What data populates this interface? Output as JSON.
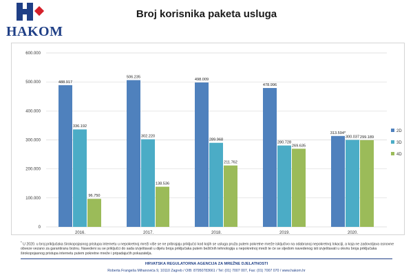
{
  "header": {
    "logo_text": "HAKOM",
    "title": "Broj korisnika paketa usluga"
  },
  "colors": {
    "2D": "#4f81bd",
    "3D": "#4bacc6",
    "4D": "#9bbb59",
    "brand_blue": "#1f3f86",
    "brand_red": "#d4202a"
  },
  "chart_data": {
    "type": "bar",
    "title": "Broj korisnika paketa usluga",
    "categories": [
      "2016.",
      "2017.",
      "2018.",
      "2019.",
      "2020."
    ],
    "series": [
      {
        "name": "2D",
        "values": [
          488917,
          506235,
          498009,
          478996,
          313594
        ],
        "labels": [
          "488.917",
          "506.235",
          "498.009",
          "478.996",
          "313.594*"
        ]
      },
      {
        "name": "3D",
        "values": [
          336192,
          302220,
          289968,
          280728,
          300037
        ],
        "labels": [
          "336.192",
          "302.220",
          "289.968",
          "280.728",
          "300.037"
        ]
      },
      {
        "name": "4D",
        "values": [
          96750,
          138536,
          211762,
          269635,
          299189
        ],
        "labels": [
          "96.750",
          "138.536",
          "211.762",
          "269.635",
          "299.189"
        ]
      }
    ],
    "y_ticks": [
      0,
      100000,
      200000,
      300000,
      400000,
      500000,
      600000
    ],
    "y_tick_labels": [
      "0",
      "100.000",
      "200.000",
      "300.000",
      "400.000",
      "500.000",
      "600.000"
    ],
    "ylim": [
      0,
      600000
    ],
    "grid": true,
    "legend": "right"
  },
  "footer": {
    "footnote_mark": "*",
    "footnote": "U 2020. u broj priključaka širokopojasnog pristupa internetu u nepokretnoj mreži više se ne pribrajaju priključci kod kojih se usluga pruža putem pokretne mreže isključivo na odabranoj nepokretnoj lokaciji, a koja ne zadovoljava osnovne obveze vezano za garantiranu brzinu. Navedeni su se priključci do sada izvještavali u dijelu broja priključaka putem bežičnih tehnologija u nepokretnoj mreži te će se sljedom navedenog isti izvještavati u okviru broja priključaka širokopojasnog pristupa internetu putem pokretne mreže i pripadajućih pokazatelja.",
    "agency": "HRVATSKA REGULATORNA AGENCIJA ZA MREŽNE DJELATNOSTI",
    "address": "Roberta Frangeša Mihanovića 9, 10110 Zagreb / OIB: 87950783661 / Tel: (01) 7007 007, Fax: (01) 7007 070 / www.hakom.hr"
  }
}
